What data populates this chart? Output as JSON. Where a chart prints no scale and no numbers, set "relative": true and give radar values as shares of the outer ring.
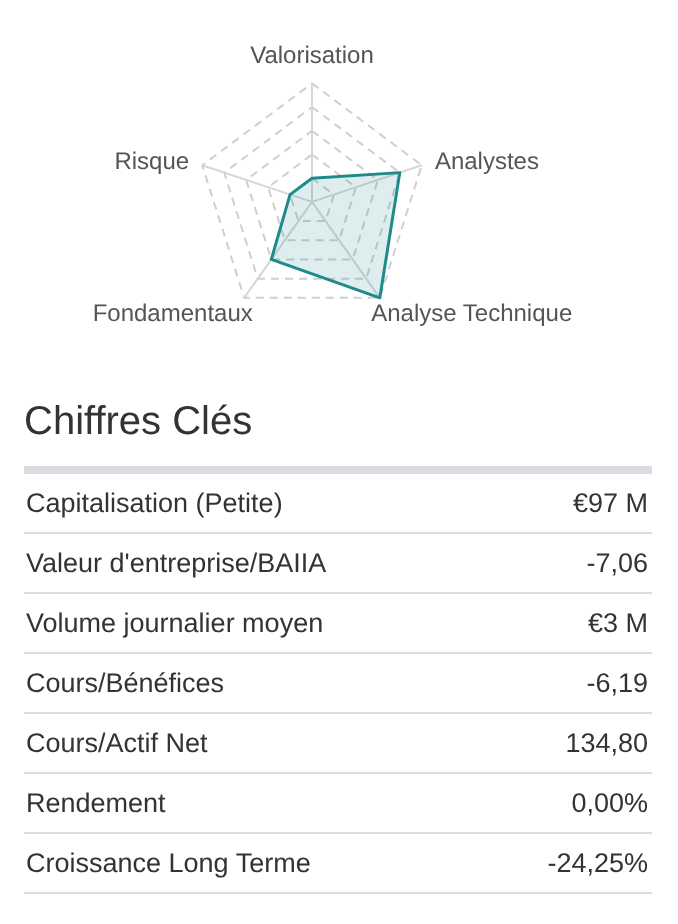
{
  "chart_data": [
    {
      "type": "radar",
      "relative": true,
      "grid": true,
      "categories": [
        "Valorisation",
        "Analystes",
        "Analyse Technique",
        "Fondamentaux",
        "Risque"
      ],
      "series": [
        {
          "color": "#1f8a8c",
          "values": [
            0.2,
            0.8,
            1.0,
            0.6,
            0.2
          ]
        }
      ]
    },
    {
      "type": "other",
      "title": "Chiffres Clés",
      "categories": [
        "Capitalisation (Petite)",
        "Valeur d'entreprise/BAIIA",
        "Volume journalier moyen",
        "Cours/Bénéfices",
        "Cours/Actif Net",
        "Rendement",
        "Croissance Long Terme"
      ],
      "value_labels": [
        "€97 M",
        "-7,06",
        "€3 M",
        "-6,19",
        "134,80",
        "0,00%",
        "-24,25%"
      ]
    }
  ]
}
